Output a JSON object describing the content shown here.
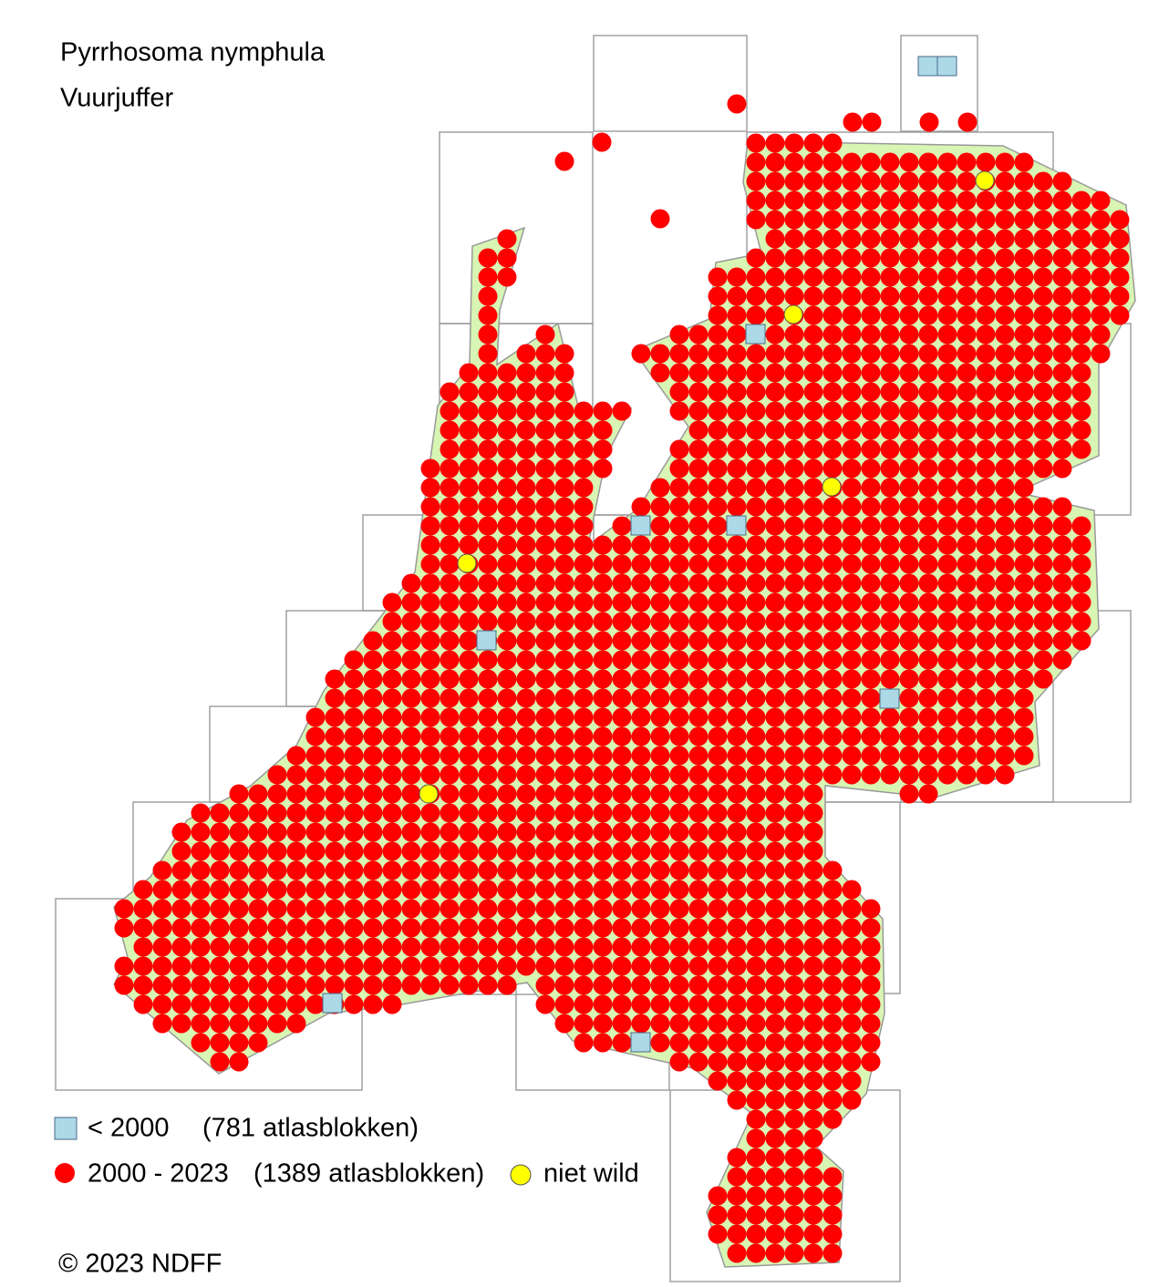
{
  "title": "Pyrrhosoma nymphula",
  "subtitle": "Vuurjuffer",
  "legend": [
    {
      "label": "< 2000",
      "count": "(781 atlasblokken)"
    },
    {
      "label": "2000 - 2023",
      "count": "(1389 atlasblokken)"
    },
    {
      "label": "niet wild"
    }
  ],
  "copyright": "© 2023 NDFF"
}
